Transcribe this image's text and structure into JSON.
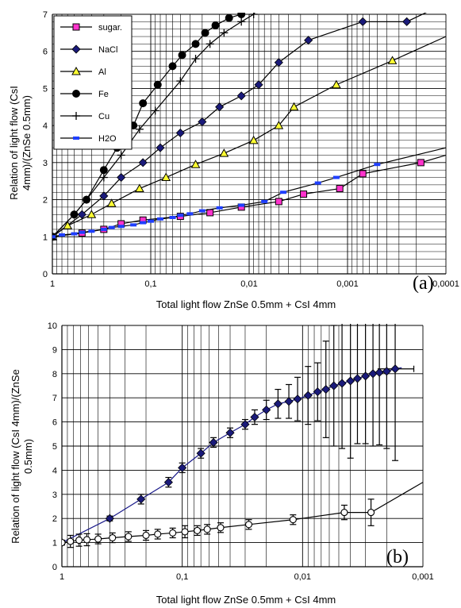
{
  "chart_data": [
    {
      "panel": "(a)",
      "type": "line",
      "xlabel": "Total light flow ZnSe 0.5mm + CsI 4mm",
      "ylabel": "Relation of  light flow (CsI 4mm)/(ZnSe 0.5mm)",
      "x_scale": "log",
      "x_reversed": true,
      "xlim": [
        1,
        0.0001
      ],
      "ylim": [
        0,
        7
      ],
      "x_tick_labels": [
        "1",
        "0,1",
        "0,01",
        "0,001",
        "0,0001"
      ],
      "y_tick_labels": [
        "0",
        "1",
        "2",
        "3",
        "4",
        "5",
        "6",
        "7"
      ],
      "grid": true,
      "legend_position": "top-left",
      "series": [
        {
          "name": "sugar.",
          "marker": "square",
          "marker_color": "#ff33cc",
          "x": [
            1,
            0.5,
            0.3,
            0.2,
            0.12,
            0.05,
            0.025,
            0.012,
            0.005,
            0.0028,
            0.0012,
            0.0007,
            0.00018
          ],
          "y": [
            1.0,
            1.1,
            1.2,
            1.35,
            1.45,
            1.55,
            1.65,
            1.8,
            1.95,
            2.15,
            2.3,
            2.7,
            3.0
          ],
          "fit_end": [
            0.0001,
            3.2
          ]
        },
        {
          "name": "NaCl",
          "marker": "diamond",
          "marker_color": "#1a1a7a",
          "x": [
            1,
            0.5,
            0.3,
            0.2,
            0.12,
            0.08,
            0.05,
            0.03,
            0.02,
            0.012,
            0.008,
            0.005,
            0.0025,
            0.0007,
            0.00025
          ],
          "y": [
            1.0,
            1.6,
            2.1,
            2.6,
            3.0,
            3.4,
            3.8,
            4.1,
            4.5,
            4.8,
            5.1,
            5.7,
            6.3,
            6.8,
            6.8
          ],
          "fit_end": [
            0.0001,
            7.3
          ]
        },
        {
          "name": "Al",
          "marker": "triangle",
          "marker_color": "#ffff33",
          "x": [
            1,
            0.7,
            0.4,
            0.25,
            0.13,
            0.07,
            0.035,
            0.018,
            0.009,
            0.005,
            0.0035,
            0.0013,
            0.00035
          ],
          "y": [
            1.0,
            1.3,
            1.6,
            1.9,
            2.3,
            2.6,
            2.95,
            3.25,
            3.6,
            4.0,
            4.5,
            5.1,
            5.75
          ],
          "fit_end": [
            0.0001,
            6.4
          ]
        },
        {
          "name": "Fe",
          "marker": "circle",
          "marker_color": "#000000",
          "x": [
            1,
            0.6,
            0.45,
            0.3,
            0.22,
            0.15,
            0.12,
            0.085,
            0.06,
            0.048,
            0.035,
            0.028,
            0.022,
            0.016,
            0.012
          ],
          "y": [
            1.0,
            1.6,
            2.0,
            2.8,
            3.4,
            4.0,
            4.6,
            5.1,
            5.6,
            5.9,
            6.2,
            6.5,
            6.7,
            6.9,
            7.0
          ],
          "fit_end": [
            0.009,
            7.2
          ]
        },
        {
          "name": "Cu",
          "marker": "plus",
          "marker_color": "#000000",
          "x": [
            1,
            0.6,
            0.45,
            0.3,
            0.2,
            0.13,
            0.09,
            0.05,
            0.035,
            0.025,
            0.018,
            0.012,
            0.009
          ],
          "y": [
            1.0,
            1.6,
            2.0,
            2.6,
            3.2,
            3.9,
            4.4,
            5.2,
            5.8,
            6.2,
            6.5,
            6.8,
            7.0
          ],
          "fit_end": [
            0.008,
            7.2
          ]
        },
        {
          "name": "H2O",
          "marker": "dash",
          "marker_color": "#1f3fff",
          "x": [
            1,
            0.8,
            0.6,
            0.5,
            0.4,
            0.3,
            0.25,
            0.2,
            0.15,
            0.12,
            0.1,
            0.08,
            0.06,
            0.05,
            0.04,
            0.03,
            0.02,
            0.012,
            0.007,
            0.0045,
            0.002,
            0.0013,
            0.0005
          ],
          "y": [
            1.0,
            1.05,
            1.08,
            1.12,
            1.15,
            1.2,
            1.25,
            1.28,
            1.32,
            1.38,
            1.42,
            1.48,
            1.52,
            1.58,
            1.62,
            1.7,
            1.78,
            1.85,
            1.95,
            2.2,
            2.45,
            2.6,
            2.95
          ],
          "fit_end": [
            0.0001,
            3.4
          ]
        }
      ]
    },
    {
      "panel": "(b)",
      "type": "line",
      "xlabel": "Total light flow ZnSe 0.5mm + CsI 4mm",
      "ylabel": "Relation of  light flow (CsI 4mm)/(ZnSe 0.5mm)",
      "x_scale": "log",
      "x_reversed": true,
      "xlim": [
        1,
        0.001
      ],
      "ylim": [
        0,
        10
      ],
      "x_tick_labels": [
        "1",
        "0,1",
        "0,01",
        "0,001"
      ],
      "y_tick_labels": [
        "0",
        "1",
        "2",
        "3",
        "4",
        "5",
        "6",
        "7",
        "8",
        "9",
        "10"
      ],
      "grid": true,
      "series": [
        {
          "marker": "diamond",
          "marker_color": "#1a1a7a",
          "x": [
            1,
            0.4,
            0.22,
            0.13,
            0.1,
            0.07,
            0.055,
            0.04,
            0.03,
            0.025,
            0.02,
            0.016,
            0.013,
            0.011,
            0.009,
            0.0075,
            0.0064,
            0.0055,
            0.0047,
            0.004,
            0.0035,
            0.003,
            0.0026,
            0.0023,
            0.002,
            0.0017
          ],
          "y": [
            1.0,
            2.0,
            2.8,
            3.5,
            4.1,
            4.7,
            5.15,
            5.55,
            5.9,
            6.2,
            6.5,
            6.75,
            6.85,
            6.95,
            7.1,
            7.25,
            7.35,
            7.5,
            7.6,
            7.7,
            7.8,
            7.9,
            8.0,
            8.05,
            8.1,
            8.2
          ],
          "err": [
            0.05,
            0.1,
            0.2,
            0.2,
            0.2,
            0.2,
            0.2,
            0.2,
            0.2,
            0.3,
            0.4,
            0.6,
            0.7,
            0.9,
            1.2,
            1.2,
            2.0,
            2.5,
            2.7,
            3.2,
            2.7,
            2.8,
            3.0,
            3.0,
            3.2,
            3.8
          ],
          "x_err_last": 0.0005
        },
        {
          "marker": "circle-open",
          "marker_color": "#ffffff",
          "x": [
            1,
            0.85,
            0.72,
            0.62,
            0.5,
            0.38,
            0.28,
            0.2,
            0.16,
            0.12,
            0.095,
            0.075,
            0.062,
            0.048,
            0.028,
            0.012,
            0.0045,
            0.0027
          ],
          "y": [
            1.0,
            1.05,
            1.1,
            1.12,
            1.15,
            1.2,
            1.25,
            1.3,
            1.35,
            1.4,
            1.45,
            1.5,
            1.55,
            1.62,
            1.75,
            1.95,
            2.25,
            2.25
          ],
          "err": [
            0.1,
            0.25,
            0.25,
            0.25,
            0.2,
            0.2,
            0.2,
            0.2,
            0.2,
            0.2,
            0.25,
            0.2,
            0.2,
            0.2,
            0.2,
            0.2,
            0.3,
            0.55
          ],
          "fit_end": [
            0.001,
            3.5
          ]
        }
      ],
      "fit_line_blue_end": [
        0.0015,
        8.25
      ]
    }
  ],
  "legend_labels": [
    "sugar.",
    "NaCl",
    "Al",
    "Fe",
    "Cu",
    "H2O"
  ],
  "panel_labels": [
    "(a)",
    "(b)"
  ],
  "axis_titles": {
    "a_y_line1": "Relation of  light flow (CsI",
    "a_y_line2": "4mm)/(ZnSe 0.5mm)",
    "a_x": "Total light flow ZnSe 0.5mm + CsI 4mm",
    "b_y_line1": "Relation of  light flow (CsI 4mm)/(ZnSe",
    "b_y_line2": "0.5mm)",
    "b_x": "Total light flow ZnSe 0.5mm + CsI 4mm"
  }
}
